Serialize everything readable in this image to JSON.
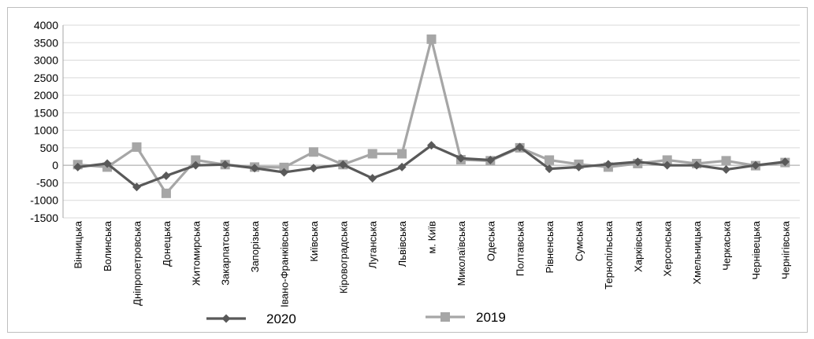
{
  "chart_data": {
    "type": "line",
    "categories": [
      "Вінницька",
      "Волинська",
      "Дніпропетровська",
      "Донецька",
      "Житомирська",
      "Закарпатська",
      "Запорізька",
      "Івано-Франківська",
      "Київська",
      "Кіровоградська",
      "Луганська",
      "Львівська",
      "м. Київ",
      "Миколаївська",
      "Одеська",
      "Полтавська",
      "Рівненська",
      "Сумська",
      "Тернопільська",
      "Харківська",
      "Херсонська",
      "Хмельницька",
      "Черкаська",
      "Чернівецька",
      "Чернігівська"
    ],
    "series": [
      {
        "name": "2020",
        "color": "#595959",
        "marker": "diamond",
        "values": [
          -50,
          50,
          -620,
          -300,
          0,
          20,
          -80,
          -200,
          -80,
          20,
          -370,
          -50,
          570,
          200,
          150,
          520,
          -100,
          -50,
          30,
          100,
          0,
          0,
          -120,
          0,
          100
        ]
      },
      {
        "name": "2019",
        "color": "#a6a6a6",
        "marker": "square",
        "values": [
          20,
          -50,
          520,
          -800,
          150,
          20,
          -50,
          -60,
          380,
          20,
          330,
          330,
          3600,
          160,
          130,
          500,
          150,
          30,
          -50,
          50,
          150,
          50,
          130,
          -10,
          80
        ]
      }
    ],
    "ylim": [
      -1500,
      4000
    ],
    "yticks": [
      "-1500",
      "-1000",
      "-500",
      "0",
      "500",
      "1000",
      "1500",
      "2000",
      "2500",
      "3000",
      "3500",
      "4000"
    ],
    "grid": true,
    "legend_position": "bottom",
    "title": "",
    "xlabel": "",
    "ylabel": ""
  }
}
